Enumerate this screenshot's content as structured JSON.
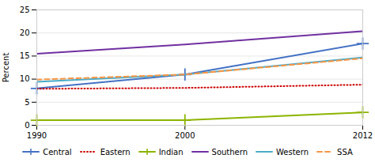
{
  "chart_data": {
    "type": "line",
    "ylabel": "Percent",
    "x": [
      1990,
      2000,
      2012
    ],
    "series": [
      {
        "name": "Central",
        "color": "#4472C4",
        "values": [
          8.0,
          11.0,
          17.7
        ],
        "line_style": "solid",
        "marker": "plus"
      },
      {
        "name": "Eastern",
        "color": "#CC0000",
        "values": [
          7.9,
          8.1,
          8.8
        ],
        "line_style": "dotted"
      },
      {
        "name": "Indian",
        "color": "#8CB400",
        "values": [
          1.1,
          1.1,
          2.8
        ],
        "line_style": "solid",
        "marker": "plus"
      },
      {
        "name": "Southern",
        "color": "#7030A0",
        "values": [
          15.5,
          17.5,
          20.4
        ],
        "line_style": "solid"
      },
      {
        "name": "Western",
        "color": "#4BACC6",
        "values": [
          9.4,
          11.0,
          14.7
        ],
        "line_style": "solid"
      },
      {
        "name": "SSA",
        "color": "#F79646",
        "values": [
          9.9,
          11.0,
          14.5
        ],
        "line_style": "dashed"
      }
    ],
    "xlim": [
      1990,
      2012
    ],
    "xticks": [
      1990,
      2000,
      2012
    ],
    "ylim": [
      0,
      25
    ],
    "yticks": [
      0,
      5,
      10,
      15,
      20,
      25
    ],
    "grid": true,
    "legend": "bottom"
  }
}
